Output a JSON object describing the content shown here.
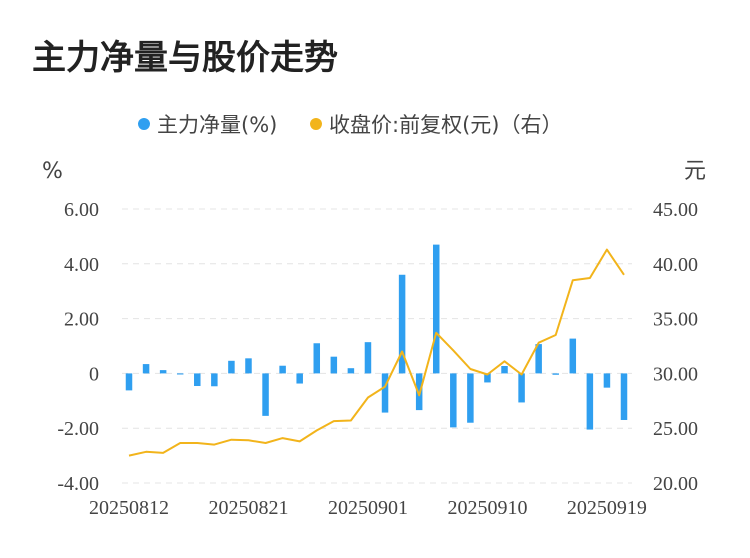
{
  "title": "主力净量与股价走势",
  "colors": {
    "bar": "#2f9ff0",
    "line": "#f2b41b",
    "grid": "#e4e4e4",
    "text": "#444444"
  },
  "chart_data": {
    "type": "bar+line",
    "legend": [
      {
        "label": "主力净量(%)",
        "color": "#2f9ff0",
        "marker": "dot"
      },
      {
        "label": "收盘价:前复权(元)（右）",
        "color": "#f2b41b",
        "marker": "dot"
      }
    ],
    "legend_position": "top-center",
    "left_axis": {
      "unit": "%",
      "ylim": [
        -4,
        6
      ],
      "ticks": [
        6,
        4,
        2,
        0,
        -2,
        -4
      ],
      "tick_labels": [
        "6.00",
        "4.00",
        "2.00",
        "0",
        "-2.00",
        "-4.00"
      ]
    },
    "right_axis": {
      "unit": "元",
      "ylim": [
        20,
        45
      ],
      "ticks": [
        45,
        40,
        35,
        30,
        25,
        20
      ],
      "tick_labels": [
        "45.00",
        "40.00",
        "35.00",
        "30.00",
        "25.00",
        "20.00"
      ]
    },
    "grid": "horizontal-dashed",
    "x_tick_labels": [
      "20250812",
      "20250821",
      "20250901",
      "20250910",
      "20250919"
    ],
    "x_tick_indices": [
      0,
      7,
      14,
      21,
      28
    ],
    "series": [
      {
        "name": "主力净量(%)",
        "axis": "left",
        "kind": "bar",
        "values": [
          -0.62,
          0.34,
          0.12,
          -0.04,
          -0.46,
          -0.47,
          0.46,
          0.55,
          -1.55,
          0.28,
          -0.37,
          1.1,
          0.61,
          0.19,
          1.14,
          -1.43,
          3.6,
          -1.34,
          4.7,
          -1.97,
          -1.8,
          -0.33,
          0.27,
          -1.06,
          1.07,
          -0.05,
          1.27,
          -2.05,
          -0.52,
          -1.7
        ]
      },
      {
        "name": "收盘价:前复权(元)（右）",
        "axis": "right",
        "kind": "line",
        "values": [
          22.5,
          22.85,
          22.75,
          23.65,
          23.65,
          23.5,
          23.95,
          23.9,
          23.65,
          24.1,
          23.8,
          24.8,
          25.65,
          25.7,
          27.8,
          28.8,
          32.0,
          28.0,
          33.7,
          32.1,
          30.4,
          29.9,
          31.1,
          29.9,
          32.8,
          33.5,
          38.5,
          38.7,
          41.3,
          39.0
        ]
      }
    ]
  }
}
